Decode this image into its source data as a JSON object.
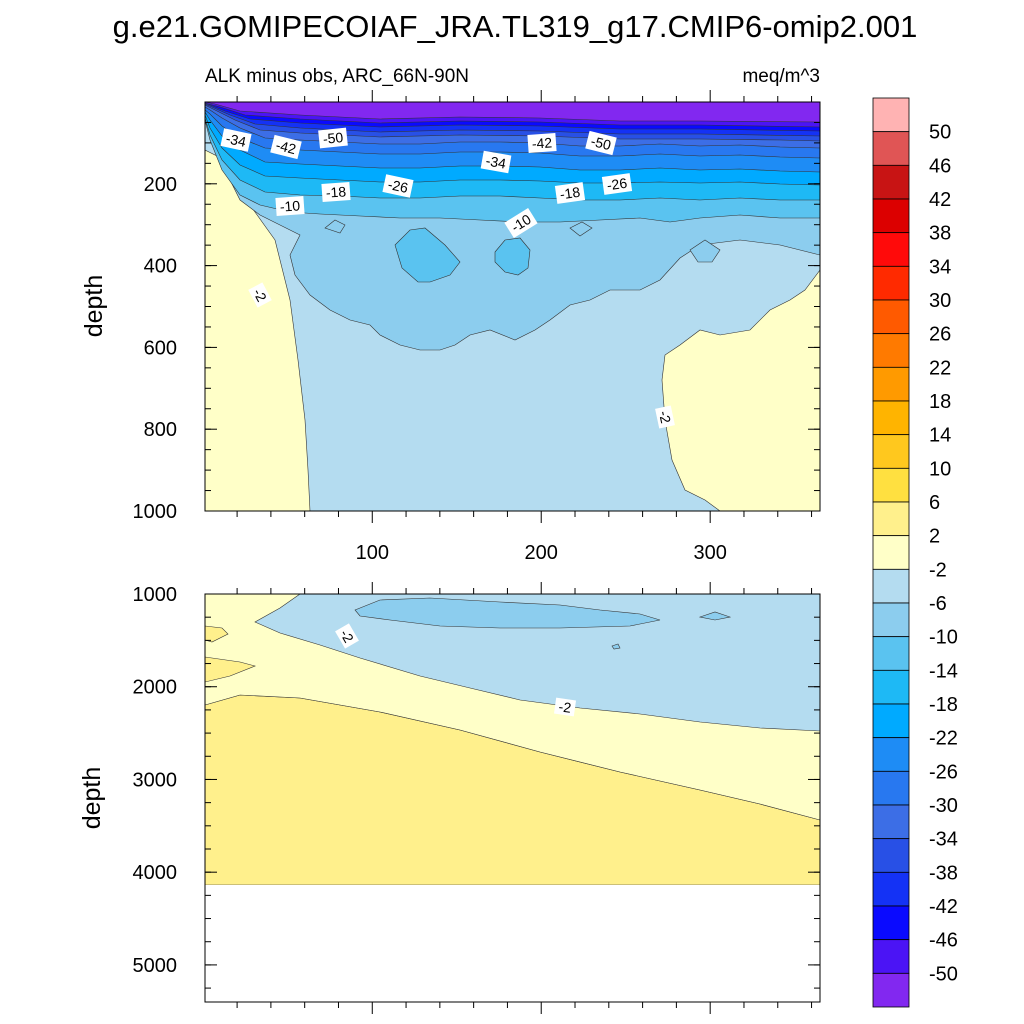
{
  "chart_data": {
    "type": "heatmap",
    "title": "g.e21.GOMIPECOIAF_JRA.TL319_g17.CMIP6-omip2.001",
    "subtitle_left": "ALK minus obs, ARC_66N-90N",
    "subtitle_right": "meq/m^3",
    "xlabel": "",
    "ylabel": "depth",
    "xlim": [
      1,
      365
    ],
    "x_ticks": [
      "100",
      "200",
      "300"
    ],
    "panels": [
      {
        "name": "upper",
        "ylim": [
          0,
          1000
        ],
        "y_ticks": [
          "200",
          "400",
          "600",
          "800",
          "1000"
        ],
        "contour_labels": [
          "-34",
          "-42",
          "-50",
          "-42",
          "-50",
          "-34",
          "-18",
          "-26",
          "-18",
          "-26",
          "-10",
          "-10",
          "-2",
          "-2"
        ]
      },
      {
        "name": "lower",
        "ylim": [
          1000,
          5400
        ],
        "y_ticks": [
          "1000",
          "2000",
          "3000",
          "4000",
          "5000"
        ],
        "contour_labels": [
          "-2",
          "-2"
        ],
        "max_depth_with_data": 4100
      }
    ],
    "colorbar": {
      "levels": [
        "50",
        "46",
        "42",
        "38",
        "34",
        "30",
        "26",
        "22",
        "18",
        "14",
        "10",
        "6",
        "2",
        "-2",
        "-6",
        "-10",
        "-14",
        "-18",
        "-22",
        "-26",
        "-30",
        "-34",
        "-38",
        "-42",
        "-46",
        "-50"
      ],
      "colors": [
        "#ffb3b3",
        "#e05555",
        "#c81414",
        "#dc0000",
        "#ff0a0a",
        "#ff2a00",
        "#ff5a00",
        "#ff7a00",
        "#ff9a00",
        "#ffb400",
        "#ffc81e",
        "#ffe040",
        "#fff08c",
        "#ffffc8",
        "#b4dcf0",
        "#8ccdee",
        "#5ac3f0",
        "#1eb9f5",
        "#00aaff",
        "#1e8cf5",
        "#2878f0",
        "#3c6ee6",
        "#2850e6",
        "#1432f5",
        "#0a0aff",
        "#4b14f5",
        "#8228f0"
      ]
    }
  }
}
